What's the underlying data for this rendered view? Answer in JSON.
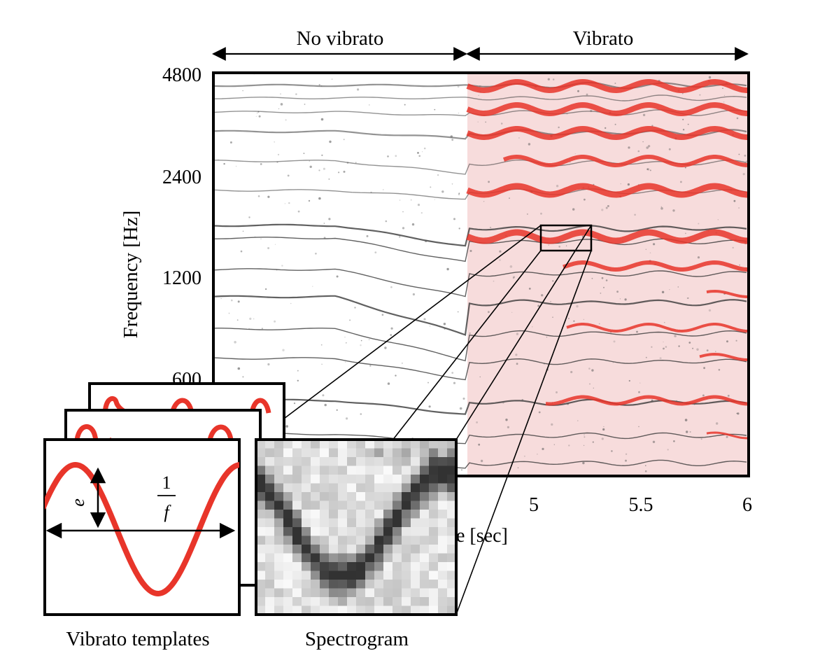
{
  "header": {
    "no_vibrato_label": "No vibrato",
    "vibrato_label": "Vibrato"
  },
  "axes": {
    "ylabel": "Frequency [Hz]",
    "xlabel_visible": "e [sec]",
    "y_ticks": [
      "4800",
      "2400",
      "1200",
      "600"
    ],
    "x_ticks": [
      "5",
      "5.5",
      "6"
    ],
    "y_scale": "log"
  },
  "template_panel": {
    "caption": "Vibrato templates",
    "extent_symbol": "e",
    "period_numerator": "1",
    "period_denominator": "f"
  },
  "spectrogram_panel": {
    "caption": "Spectrogram"
  },
  "colors": {
    "vibrato_highlight": "#e8352a",
    "vibrato_region": "#f7dcdc",
    "frame": "#000000",
    "spectrogram_ink": "#333333"
  }
}
